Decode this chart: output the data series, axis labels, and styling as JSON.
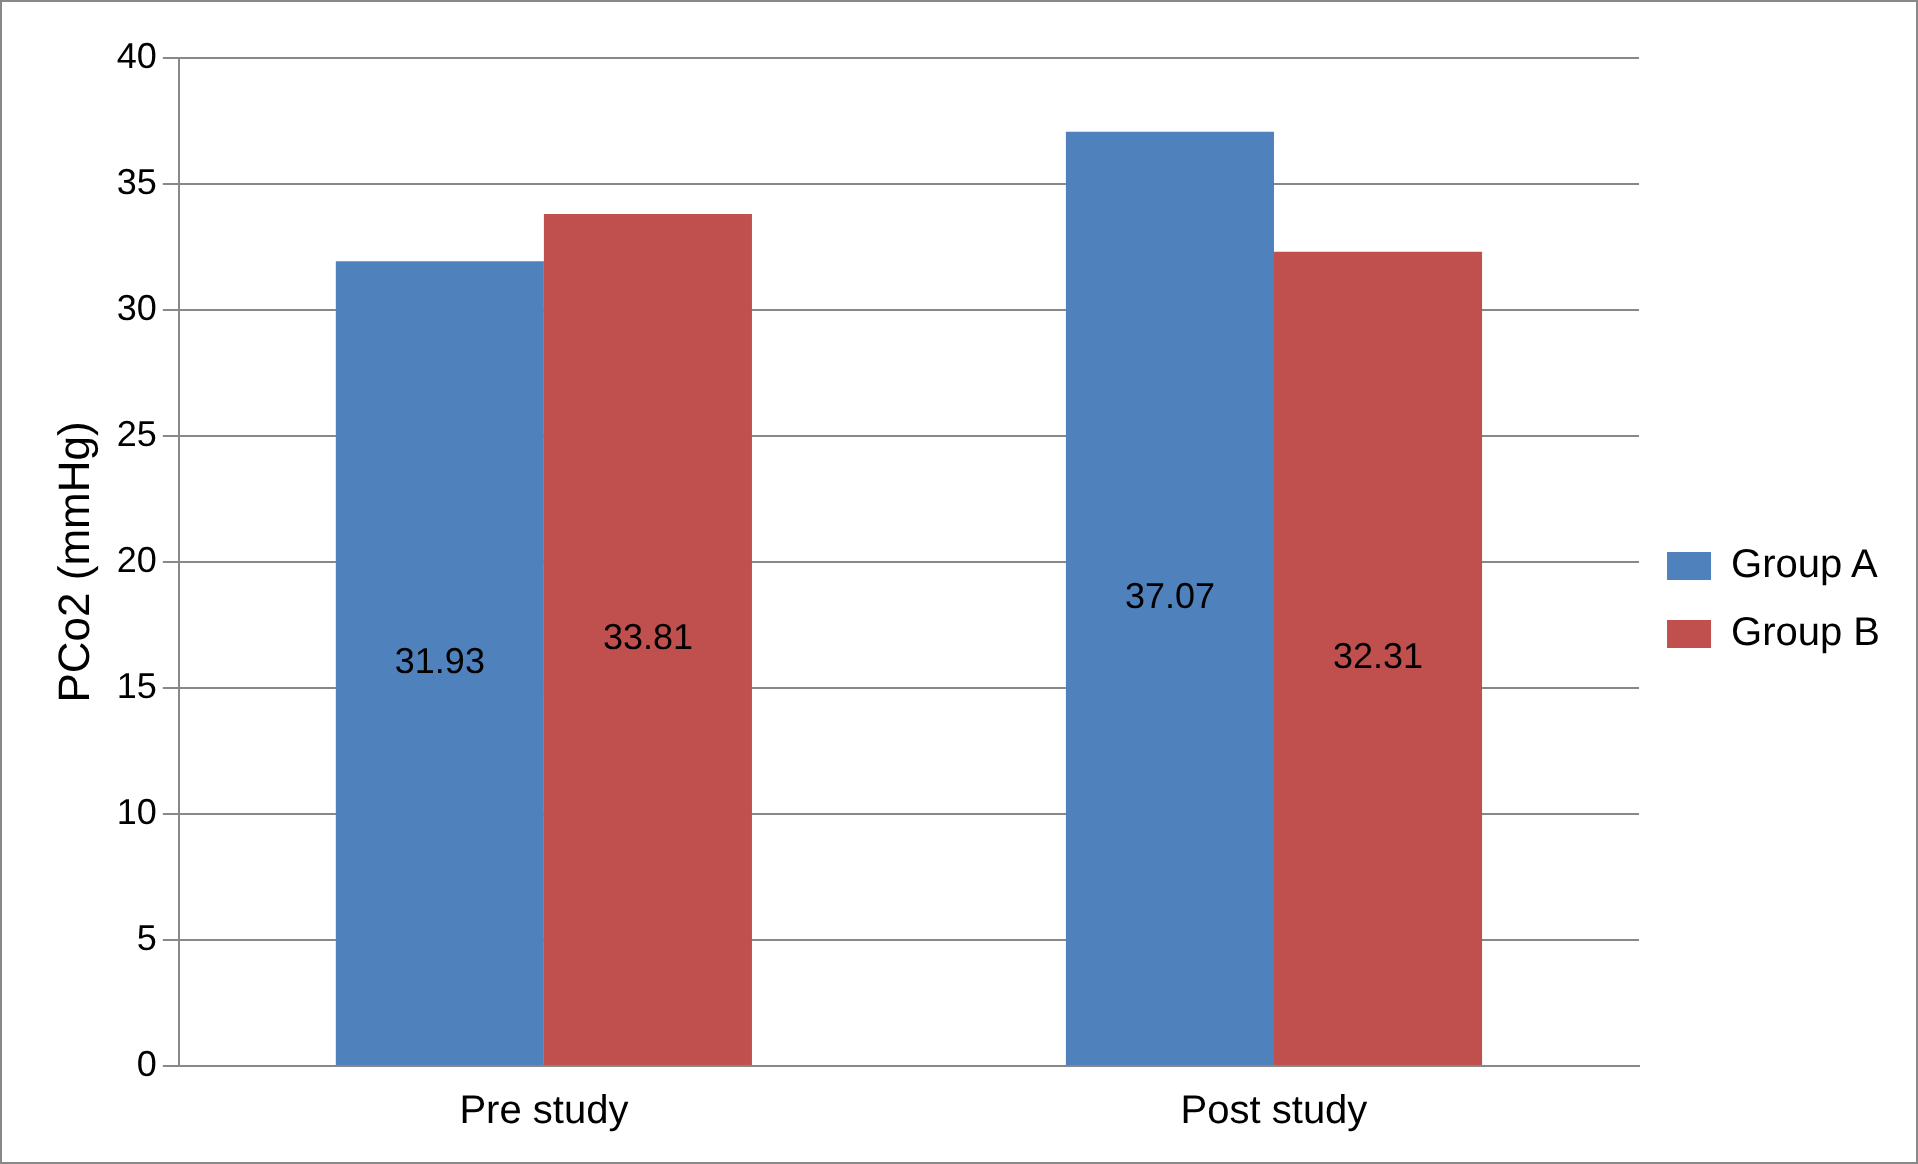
{
  "chart_data": {
    "type": "bar",
    "ylabel": "PCo2 (mmHg)",
    "categories": [
      "Pre study",
      "Post study"
    ],
    "series": [
      {
        "name": "Group A",
        "color": "#4f81bd",
        "values": [
          31.93,
          37.07
        ]
      },
      {
        "name": "Group B",
        "color": "#c0504d",
        "values": [
          33.81,
          32.31
        ]
      }
    ],
    "ylim": [
      0,
      40
    ],
    "yticks": [
      0,
      5,
      10,
      15,
      20,
      25,
      30,
      35,
      40
    ],
    "grid": "y",
    "legend": "right",
    "data_labels": true
  }
}
